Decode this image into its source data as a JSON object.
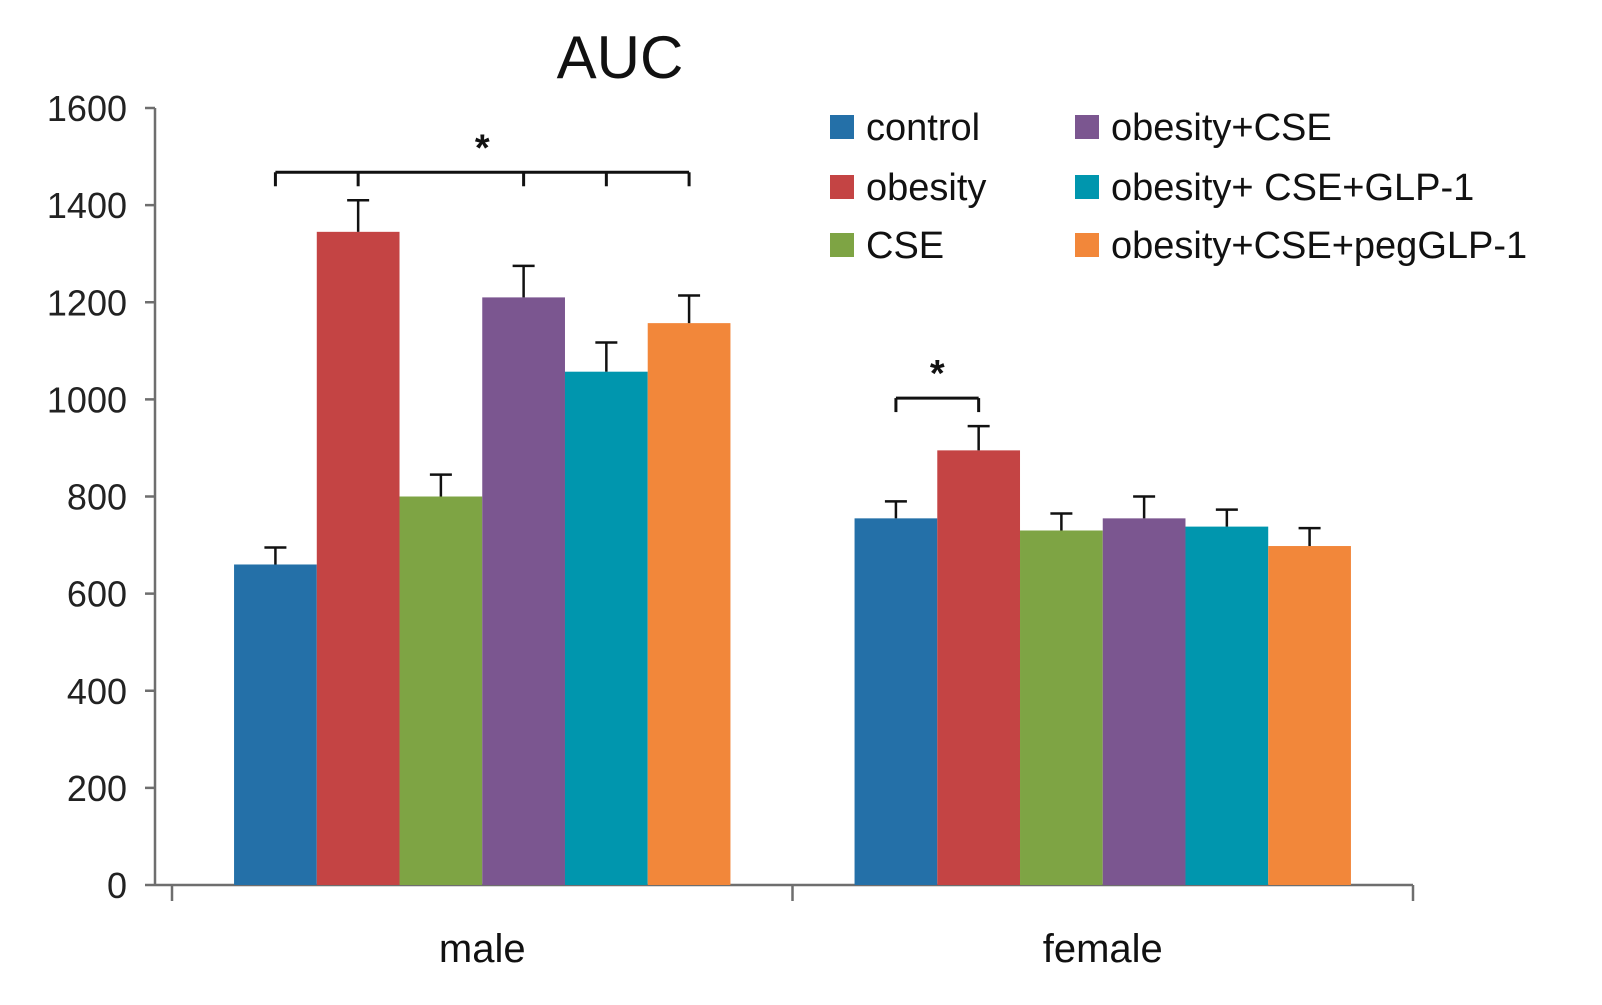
{
  "chart_data": {
    "type": "bar",
    "title": "AUC",
    "xlabel": "",
    "ylabel": "",
    "ylim": [
      0,
      1600
    ],
    "yticks": [
      0,
      200,
      400,
      600,
      800,
      1000,
      1200,
      1400,
      1600
    ],
    "categories": [
      "male",
      "female"
    ],
    "grid": false,
    "legend_position": "top-right",
    "series": [
      {
        "name": "control",
        "color": "#2470a8",
        "values": [
          660,
          755
        ],
        "errors": [
          35,
          35
        ]
      },
      {
        "name": "obesity",
        "color": "#c44444",
        "values": [
          1345,
          895
        ],
        "errors": [
          65,
          50
        ]
      },
      {
        "name": "CSE",
        "color": "#7ea444",
        "values": [
          800,
          730
        ],
        "errors": [
          45,
          35
        ]
      },
      {
        "name": "obesity+CSE",
        "color": "#7b5690",
        "values": [
          1210,
          755
        ],
        "errors": [
          65,
          45
        ]
      },
      {
        "name": "obesity+ CSE+GLP-1",
        "color": "#0096ae",
        "values": [
          1057,
          738
        ],
        "errors": [
          60,
          35
        ]
      },
      {
        "name": "obesity+CSE+pegGLP-1",
        "color": "#f2873a",
        "values": [
          1157,
          698
        ],
        "errors": [
          57,
          37
        ]
      }
    ],
    "annotations": [
      {
        "text": "*",
        "category": "male",
        "from_series": 0,
        "to_series": 5,
        "tick_series": [
          1,
          3,
          4
        ]
      },
      {
        "text": "*",
        "category": "female",
        "from_series": 0,
        "to_series": 1,
        "tick_series": []
      }
    ]
  }
}
